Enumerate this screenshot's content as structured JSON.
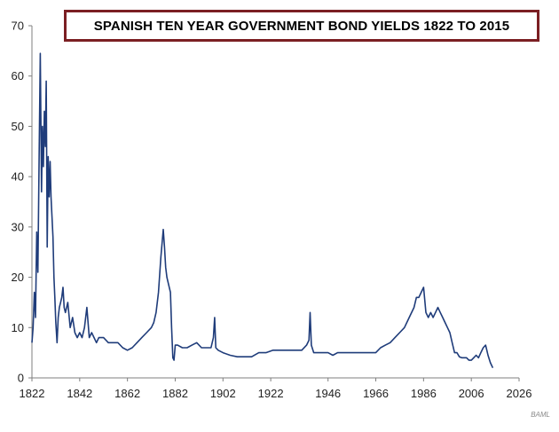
{
  "chart_data": {
    "type": "line",
    "title": "SPANISH TEN YEAR GOVERNMENT BOND YIELDS 1822 TO 2015",
    "xlabel": "",
    "ylabel": "",
    "source": "BAML",
    "xlim": [
      1822,
      2026
    ],
    "ylim": [
      0,
      70
    ],
    "x_ticks": [
      1822,
      1842,
      1862,
      1882,
      1902,
      1922,
      1946,
      1966,
      1986,
      2006,
      2026
    ],
    "x_tick_labels": [
      "1822",
      "1842",
      "1862",
      "1882",
      "1902",
      "1922",
      "1946",
      "1966",
      "1986",
      "2006",
      "2026"
    ],
    "y_ticks": [
      0,
      10,
      20,
      30,
      40,
      50,
      60,
      70
    ],
    "y_tick_labels": [
      "0",
      "10",
      "20",
      "30",
      "40",
      "50",
      "60",
      "70"
    ],
    "grid": false,
    "legend": "none",
    "line_color": "#1f3c7a",
    "series": [
      {
        "x": [
          1822,
          1822.5,
          1823,
          1823.5,
          1824,
          1824.5,
          1825,
          1825.5,
          1826,
          1826.4,
          1826.8,
          1827.2,
          1827.6,
          1828,
          1828.4,
          1828.8,
          1829.2,
          1829.6,
          1830,
          1830.4,
          1830.8,
          1831.2,
          1831.6,
          1832,
          1832.5,
          1833,
          1833.5,
          1834,
          1834.5,
          1835,
          1835.5,
          1836,
          1837,
          1838,
          1839,
          1840,
          1841,
          1842,
          1843,
          1844,
          1845,
          1846,
          1847,
          1848,
          1849,
          1850,
          1852,
          1854,
          1856,
          1858,
          1860,
          1862,
          1864,
          1866,
          1868,
          1870,
          1872,
          1873,
          1874,
          1875,
          1876,
          1877,
          1877.5,
          1878,
          1878.5,
          1879,
          1880,
          1880.5,
          1881,
          1881.5,
          1882,
          1883,
          1885,
          1887,
          1889,
          1891,
          1893,
          1895,
          1897,
          1898,
          1898.5,
          1899,
          1900,
          1902,
          1905,
          1908,
          1911,
          1914,
          1917,
          1920,
          1923,
          1926,
          1929,
          1932,
          1935,
          1937,
          1938,
          1938.5,
          1939,
          1940,
          1942,
          1944,
          1946,
          1948,
          1950,
          1952,
          1954,
          1956,
          1958,
          1960,
          1962,
          1964,
          1966,
          1968,
          1970,
          1972,
          1974,
          1976,
          1978,
          1980,
          1982,
          1983,
          1984,
          1985,
          1986,
          1987,
          1988,
          1989,
          1990,
          1991,
          1992,
          1993,
          1994,
          1995,
          1996,
          1997,
          1998,
          1999,
          2000,
          2001,
          2002,
          2003,
          2004,
          2005,
          2006,
          2007,
          2008,
          2009,
          2010,
          2011,
          2012,
          2013,
          2014,
          2015
        ],
        "y": [
          7,
          10,
          17,
          12,
          29,
          21,
          44,
          64.5,
          37,
          50,
          42,
          53,
          46,
          59,
          26,
          44,
          36,
          43,
          36,
          32,
          28,
          20,
          16,
          11,
          7,
          12,
          14,
          15,
          16,
          18,
          14,
          13,
          15,
          10,
          12,
          9,
          8,
          9,
          8,
          10,
          14,
          8,
          9,
          8,
          7,
          8,
          8,
          7,
          7,
          7,
          6,
          5.5,
          6,
          7,
          8,
          9,
          10,
          11,
          13,
          17,
          24,
          29.5,
          26,
          22,
          20,
          19,
          17,
          10,
          4,
          3.5,
          6.5,
          6.5,
          6,
          6,
          6.5,
          7,
          6,
          6,
          6,
          8,
          12,
          6,
          5.5,
          5,
          4.5,
          4.2,
          4.2,
          4.2,
          5,
          5,
          5.5,
          5.5,
          5.5,
          5.5,
          5.5,
          6.5,
          7.5,
          13,
          6.5,
          5,
          5,
          5,
          5,
          4.5,
          5,
          5,
          5,
          5,
          5,
          5,
          5,
          5,
          5,
          6,
          6.5,
          7,
          8,
          9,
          10,
          12,
          14,
          16,
          16,
          17,
          18,
          13,
          12,
          13,
          12,
          13,
          14,
          13,
          12,
          11,
          10,
          9,
          7,
          5,
          5,
          4.2,
          4,
          4,
          4,
          3.5,
          3.5,
          4,
          4.5,
          4,
          5,
          6,
          6.5,
          4.5,
          3,
          2
        ]
      }
    ]
  }
}
